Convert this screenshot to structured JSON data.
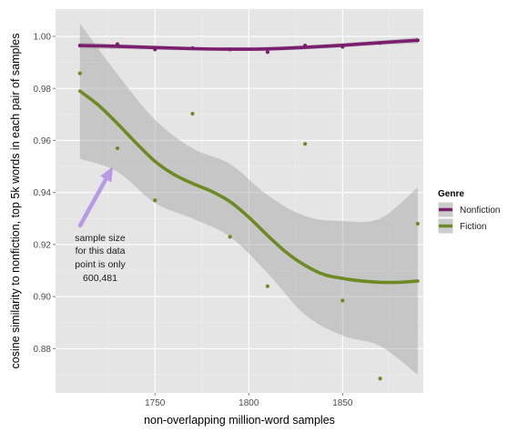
{
  "chart_data": {
    "type": "scatter",
    "xlabel": "non-overlapping million-word samples",
    "ylabel": "cosine similarity to nonfiction, top 5k words in each pair of samples",
    "xlim": [
      1697,
      1893
    ],
    "ylim": [
      0.863,
      1.0105
    ],
    "x_ticks": [
      1750,
      1800,
      1850
    ],
    "y_ticks": [
      0.88,
      0.9,
      0.92,
      0.94,
      0.96,
      0.98,
      1.0
    ],
    "y_tick_labels": [
      "0.88",
      "0.90",
      "0.92",
      "0.94",
      "0.96",
      "0.98",
      "1.00"
    ],
    "grid": true,
    "legend": {
      "title": "Genre",
      "position": "right",
      "entries": [
        {
          "label": "Nonfiction",
          "color": "#7b1e6e"
        },
        {
          "label": "Fiction",
          "color": "#6e8a24"
        }
      ]
    },
    "series": [
      {
        "name": "Nonfiction",
        "color": "#7b1e6e",
        "points": [
          {
            "x": 1710,
            "y": 0.9965
          },
          {
            "x": 1730,
            "y": 0.997
          },
          {
            "x": 1750,
            "y": 0.995
          },
          {
            "x": 1770,
            "y": 0.9955
          },
          {
            "x": 1790,
            "y": 0.995
          },
          {
            "x": 1810,
            "y": 0.994
          },
          {
            "x": 1830,
            "y": 0.9965
          },
          {
            "x": 1850,
            "y": 0.996
          },
          {
            "x": 1870,
            "y": 0.9975
          },
          {
            "x": 1890,
            "y": 0.9985
          }
        ],
        "smooth": [
          {
            "x": 1710,
            "y": 0.9965
          },
          {
            "x": 1730,
            "y": 0.9962
          },
          {
            "x": 1750,
            "y": 0.9957
          },
          {
            "x": 1770,
            "y": 0.9953
          },
          {
            "x": 1790,
            "y": 0.9951
          },
          {
            "x": 1810,
            "y": 0.9952
          },
          {
            "x": 1830,
            "y": 0.9958
          },
          {
            "x": 1850,
            "y": 0.9966
          },
          {
            "x": 1870,
            "y": 0.9976
          },
          {
            "x": 1890,
            "y": 0.9985
          }
        ],
        "band": [
          {
            "x": 1710,
            "lo": 0.9953,
            "hi": 0.9977
          },
          {
            "x": 1750,
            "lo": 0.9949,
            "hi": 0.9965
          },
          {
            "x": 1790,
            "lo": 0.9944,
            "hi": 0.9958
          },
          {
            "x": 1830,
            "lo": 0.995,
            "hi": 0.9966
          },
          {
            "x": 1870,
            "lo": 0.9967,
            "hi": 0.9985
          },
          {
            "x": 1890,
            "lo": 0.9973,
            "hi": 0.9997
          }
        ]
      },
      {
        "name": "Fiction",
        "color": "#6e8a24",
        "points": [
          {
            "x": 1710,
            "y": 0.9858
          },
          {
            "x": 1730,
            "y": 0.957
          },
          {
            "x": 1750,
            "y": 0.937
          },
          {
            "x": 1770,
            "y": 0.9703
          },
          {
            "x": 1790,
            "y": 0.923
          },
          {
            "x": 1810,
            "y": 0.904
          },
          {
            "x": 1830,
            "y": 0.9587
          },
          {
            "x": 1850,
            "y": 0.8985
          },
          {
            "x": 1870,
            "y": 0.8685
          },
          {
            "x": 1890,
            "y": 0.928
          }
        ],
        "smooth": [
          {
            "x": 1710,
            "y": 0.979
          },
          {
            "x": 1720,
            "y": 0.9735
          },
          {
            "x": 1730,
            "y": 0.9665
          },
          {
            "x": 1740,
            "y": 0.959
          },
          {
            "x": 1750,
            "y": 0.952
          },
          {
            "x": 1760,
            "y": 0.947
          },
          {
            "x": 1770,
            "y": 0.9435
          },
          {
            "x": 1780,
            "y": 0.9405
          },
          {
            "x": 1790,
            "y": 0.9365
          },
          {
            "x": 1800,
            "y": 0.9305
          },
          {
            "x": 1810,
            "y": 0.9235
          },
          {
            "x": 1820,
            "y": 0.917
          },
          {
            "x": 1830,
            "y": 0.912
          },
          {
            "x": 1840,
            "y": 0.9085
          },
          {
            "x": 1850,
            "y": 0.907
          },
          {
            "x": 1860,
            "y": 0.906
          },
          {
            "x": 1870,
            "y": 0.9055
          },
          {
            "x": 1880,
            "y": 0.9055
          },
          {
            "x": 1890,
            "y": 0.906
          }
        ],
        "band": [
          {
            "x": 1710,
            "lo": 0.953,
            "hi": 1.005
          },
          {
            "x": 1730,
            "lo": 0.948,
            "hi": 0.9855
          },
          {
            "x": 1750,
            "lo": 0.936,
            "hi": 0.968
          },
          {
            "x": 1770,
            "lo": 0.93,
            "hi": 0.957
          },
          {
            "x": 1790,
            "lo": 0.923,
            "hi": 0.951
          },
          {
            "x": 1810,
            "lo": 0.909,
            "hi": 0.939
          },
          {
            "x": 1830,
            "lo": 0.893,
            "hi": 0.931
          },
          {
            "x": 1850,
            "lo": 0.885,
            "hi": 0.929
          },
          {
            "x": 1870,
            "lo": 0.881,
            "hi": 0.93
          },
          {
            "x": 1890,
            "lo": 0.87,
            "hi": 0.942
          }
        ]
      }
    ],
    "annotation": {
      "lines": [
        "sample size",
        "for this data",
        "point is only",
        "600,481"
      ],
      "arrow_color": "#b99ae6",
      "target": {
        "x": 1730,
        "y": 0.957
      }
    }
  }
}
